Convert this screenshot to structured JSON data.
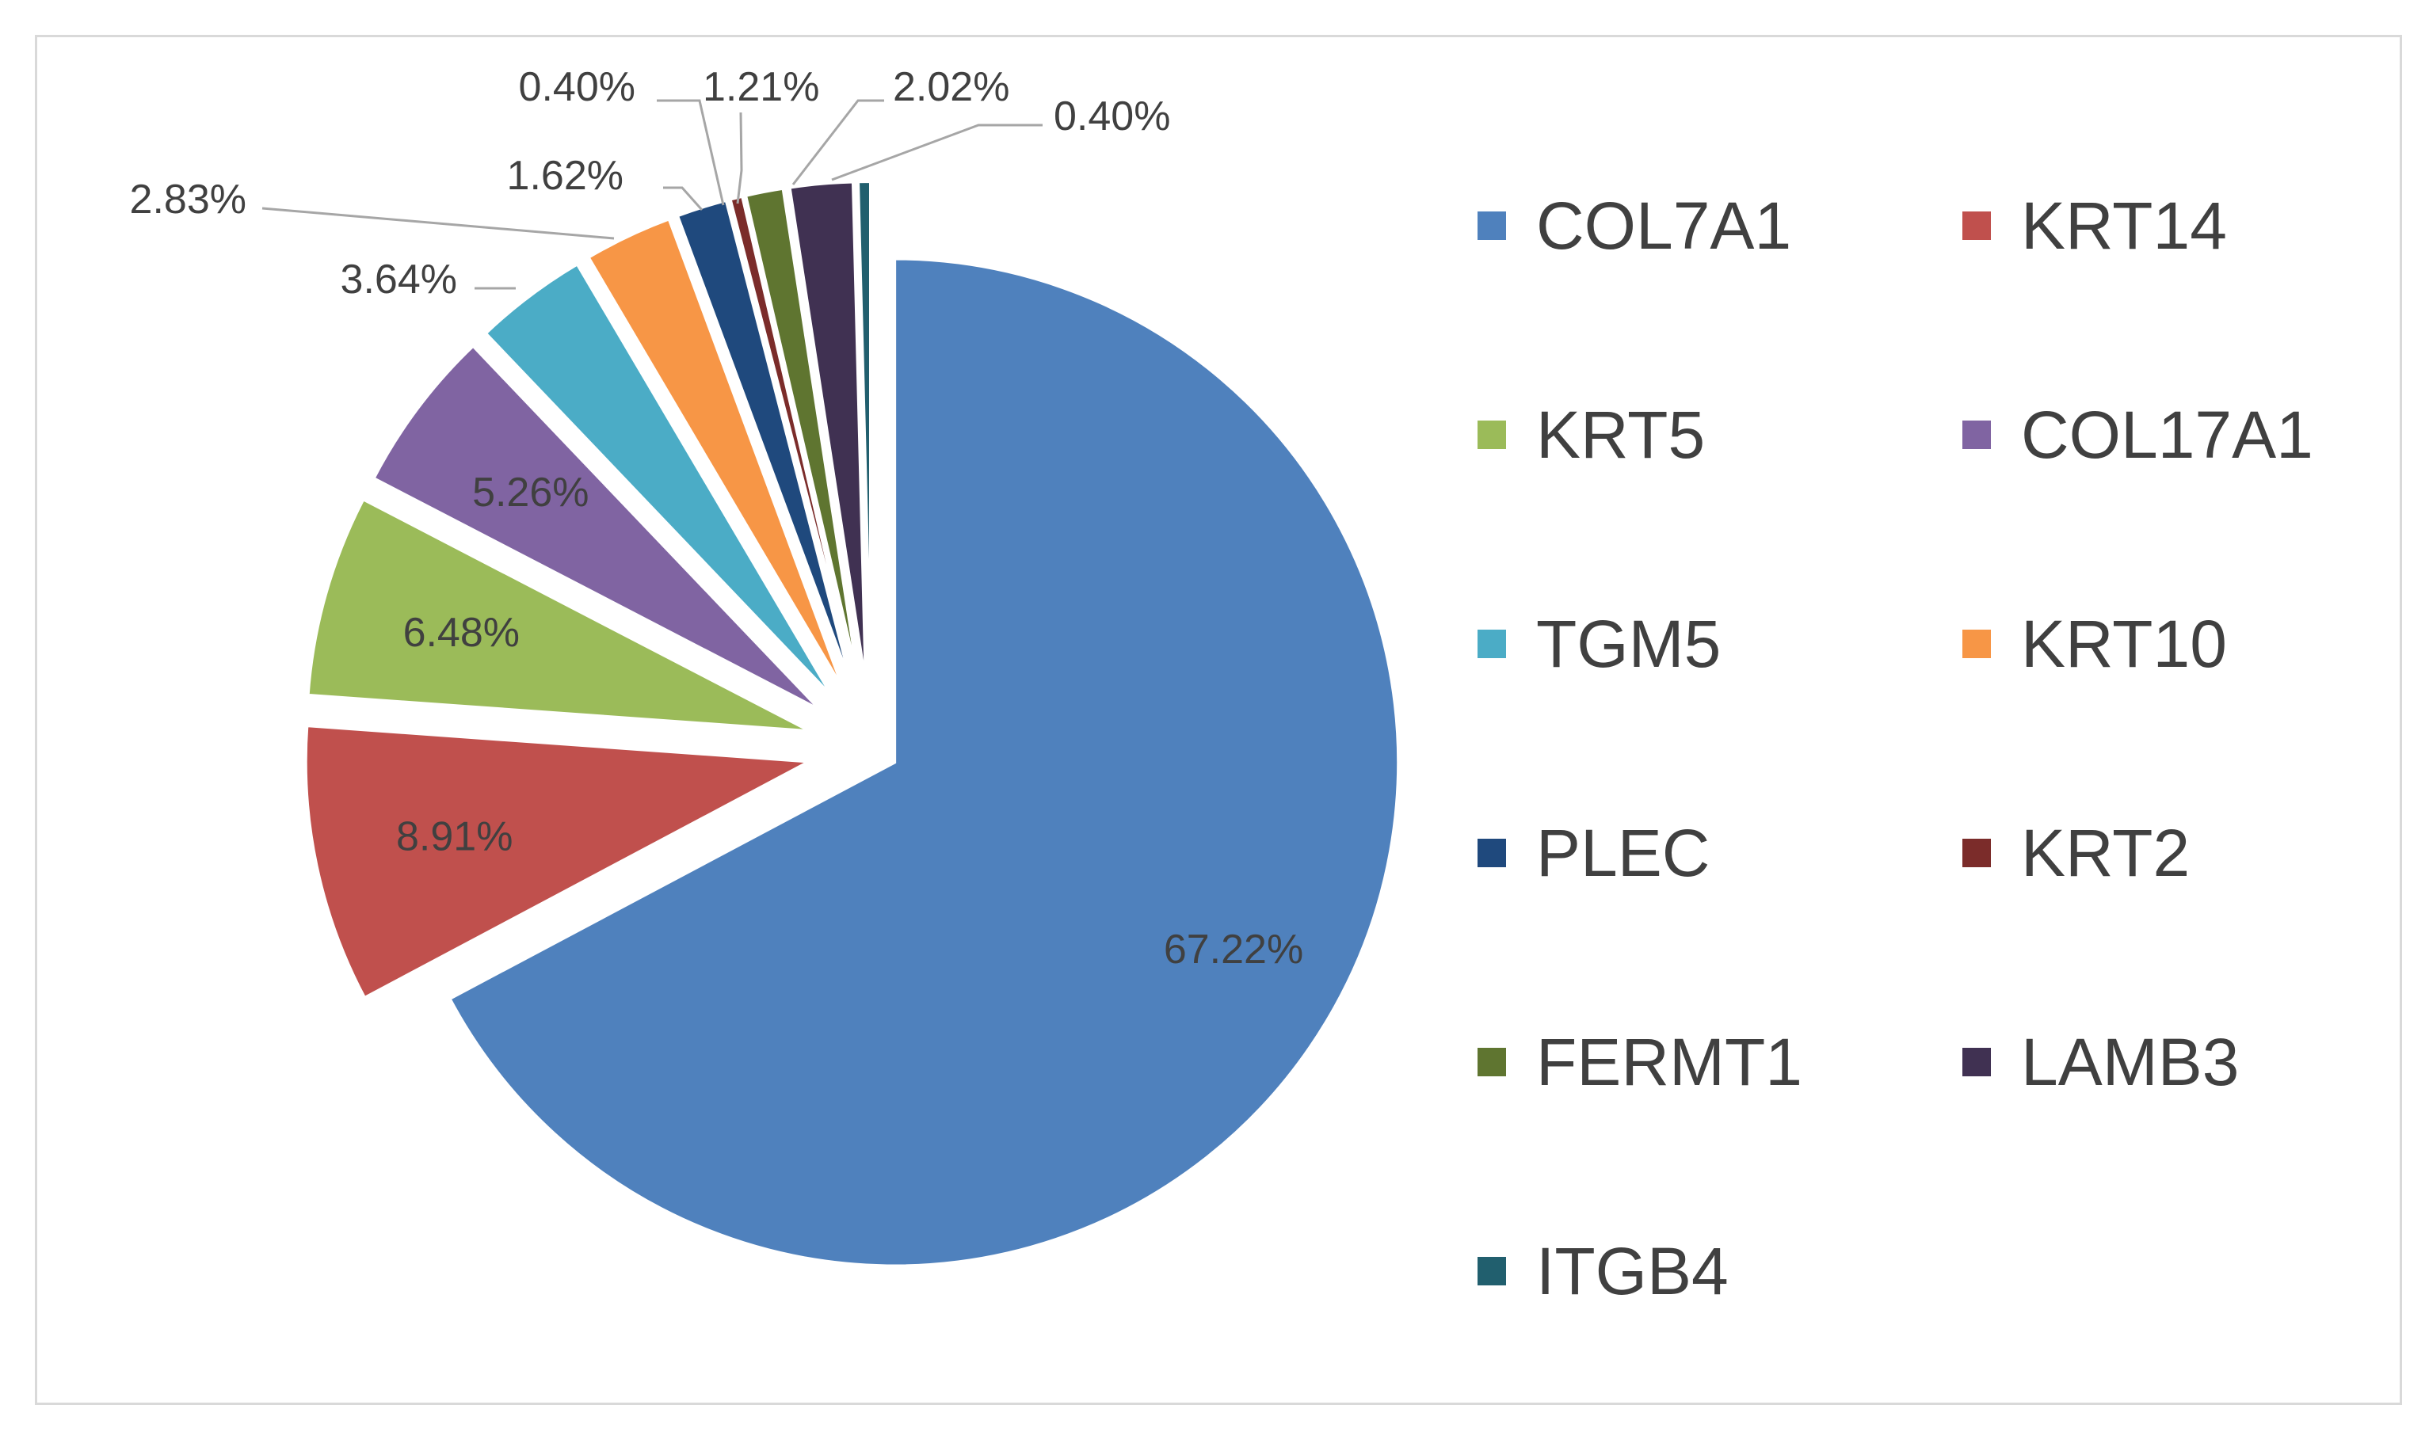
{
  "chart_data": {
    "type": "pie",
    "title": "",
    "legend_position": "right",
    "slices": [
      {
        "label": "COL7A1",
        "value": 67.22,
        "display": "67.22%",
        "color": "#4f81bd"
      },
      {
        "label": "KRT14",
        "value": 8.91,
        "display": "8.91%",
        "color": "#c0504d"
      },
      {
        "label": "KRT5",
        "value": 6.48,
        "display": "6.48%",
        "color": "#9bbb59"
      },
      {
        "label": "COL17A1",
        "value": 5.26,
        "display": "5.26%",
        "color": "#8064a2"
      },
      {
        "label": "TGM5",
        "value": 3.64,
        "display": "3.64%",
        "color": "#4bacc6"
      },
      {
        "label": "KRT10",
        "value": 2.83,
        "display": "2.83%",
        "color": "#f79646"
      },
      {
        "label": "PLEC",
        "value": 1.62,
        "display": "1.62%",
        "color": "#1f497d"
      },
      {
        "label": "KRT2",
        "value": 0.4,
        "display": "0.40%",
        "color": "#7b2c2a"
      },
      {
        "label": "FERMT1",
        "value": 1.21,
        "display": "1.21%",
        "color": "#5f7530"
      },
      {
        "label": "LAMB3",
        "value": 2.02,
        "display": "2.02%",
        "color": "#403152"
      },
      {
        "label": "ITGB4",
        "value": 0.4,
        "display": "0.40%",
        "color": "#215f6e"
      }
    ]
  }
}
